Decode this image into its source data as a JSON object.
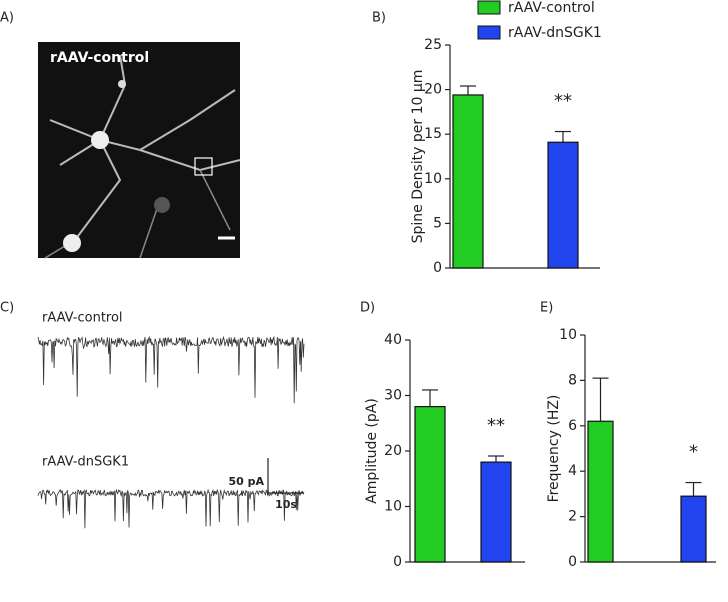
{
  "panel_labels": [
    "A)",
    "B)",
    "C)",
    "D)",
    "E)"
  ],
  "image": {
    "label": "rAAV-control"
  },
  "traces": {
    "labels": [
      "rAAV-control",
      "rAAV-dnSGK1"
    ],
    "scale_y": "50 pA",
    "scale_x": "10s"
  },
  "chart_data": [
    {
      "type": "bar",
      "ylabel": "Spine Density per 10 μm",
      "categories": [
        null,
        null
      ],
      "values": [
        19.4,
        14.1
      ],
      "errors": [
        1.0,
        1.2
      ],
      "colors": [
        "#22cc22",
        "#2244ee"
      ],
      "ylim": [
        0,
        25
      ],
      "yticks": [
        0,
        5,
        10,
        15,
        20,
        25
      ],
      "legend": [
        "rAAV-control",
        "rAAV-dnSGK1"
      ],
      "annotation": "**"
    },
    {
      "type": "bar",
      "ylabel": "Amplitude (pA)",
      "categories": [
        null,
        null
      ],
      "values": [
        28,
        18
      ],
      "errors": [
        3,
        1.1
      ],
      "colors": [
        "#22cc22",
        "#2244ee"
      ],
      "ylim": [
        0,
        40
      ],
      "yticks": [
        0,
        10,
        20,
        30,
        40
      ],
      "annotation": "**"
    },
    {
      "type": "bar",
      "ylabel": "Frequency (HZ)",
      "categories": [
        null,
        null
      ],
      "values": [
        6.2,
        2.9
      ],
      "errors": [
        1.9,
        0.6
      ],
      "colors": [
        "#22cc22",
        "#2244ee"
      ],
      "ylim": [
        0,
        10
      ],
      "yticks": [
        0,
        2,
        4,
        6,
        8,
        10
      ],
      "annotation": "*"
    }
  ]
}
